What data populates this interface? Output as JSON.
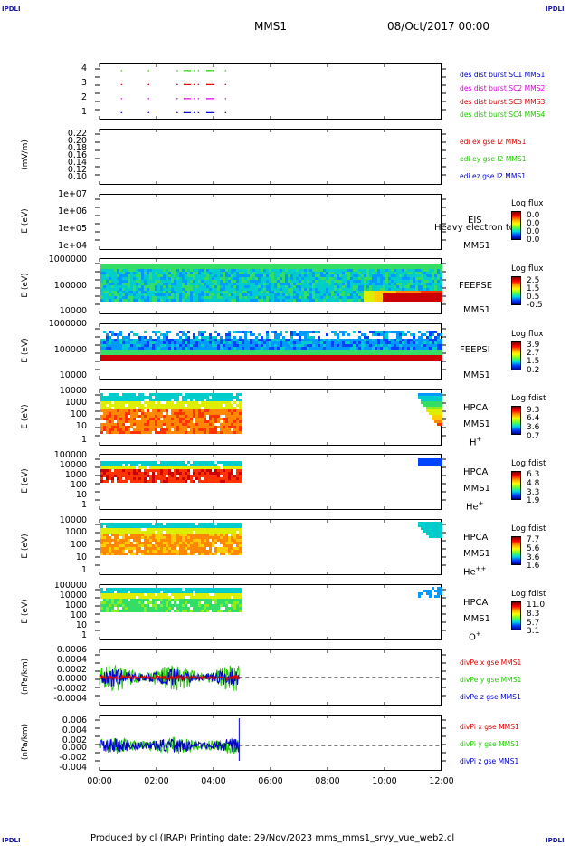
{
  "corners": {
    "tl": "IPDLI",
    "tr": "IPDLI",
    "bl": "IPDLI",
    "br": "IPDLI"
  },
  "header": {
    "spacecraft": "MMS1",
    "date": "08/Oct/2017 00:00"
  },
  "footer": {
    "text": "Produced by cl (IRAP)   Printing date: 29/Nov/2023   mms_mms1_srvy_vue_web2.cl"
  },
  "colors": {
    "red": "#dd0000",
    "green": "#22cc00",
    "blue": "#0000cc",
    "magenta": "#dd00dd"
  },
  "chart_data": [
    {
      "panel": "burst",
      "type": "scatter",
      "yticks": [
        "4",
        "3",
        "2",
        "1"
      ],
      "ylim": [
        0.5,
        4.5
      ],
      "legend": [
        "des dist burst SC1 MMS1",
        "des dist burst SC2 MMS2",
        "des dist burst SC3 MMS3",
        "des dist burst SC4 MMS4"
      ],
      "series": [
        {
          "name": "des dist burst SC1 MMS1",
          "y": 1,
          "x_hours": [
            0.75,
            1.7,
            2.7,
            2.95,
            3.3,
            3.45,
            3.75,
            4.4
          ]
        },
        {
          "name": "des dist burst SC2 MMS2",
          "y": 2,
          "x_hours": [
            0.75,
            1.7,
            2.7,
            2.95,
            3.3,
            3.45,
            3.75,
            4.4
          ]
        },
        {
          "name": "des dist burst SC3 MMS3",
          "y": 3,
          "x_hours": [
            0.75,
            1.7,
            2.7,
            2.95,
            3.3,
            3.45,
            3.75,
            4.4
          ]
        },
        {
          "name": "des dist burst SC4 MMS4",
          "y": 4,
          "x_hours": [
            0.75,
            1.7,
            2.7,
            2.95,
            3.3,
            3.45,
            3.75,
            4.4
          ]
        }
      ]
    },
    {
      "panel": "edi",
      "type": "line",
      "ylabel": "(mV/m)",
      "yticks": [
        "0.22",
        "0.20",
        "0.18",
        "0.16",
        "0.14",
        "0.12",
        "0.10"
      ],
      "legend": [
        "edi ex gse l2 MMS1",
        "edi ey gse l2 MMS1",
        "edi ez gse l2 MMS1"
      ]
    },
    {
      "panel": "eis",
      "type": "heatmap",
      "ylabel": "E (eV)",
      "yticks": [
        "1e+07",
        "1e+06",
        "1e+05",
        "1e+04"
      ],
      "instrument": [
        "EIS",
        "MMS1"
      ],
      "overlay_text": "Heavy electron to",
      "colorbar": {
        "title": "Log flux",
        "values": [
          "0.0",
          "0.0",
          "0.0",
          "0.0"
        ]
      }
    },
    {
      "panel": "feeps_e",
      "type": "heatmap",
      "ylabel": "E (eV)",
      "yticks": [
        "1000000",
        "100000",
        "10000"
      ],
      "instrument": [
        "FEEPSE",
        "MMS1"
      ],
      "colorbar": {
        "title": "Log flux",
        "values": [
          "2.5",
          "1.5",
          "0.5",
          "-0.5"
        ]
      }
    },
    {
      "panel": "feeps_i",
      "type": "heatmap",
      "ylabel": "E (eV)",
      "yticks": [
        "1000000",
        "100000",
        "10000"
      ],
      "instrument": [
        "FEEPSI",
        "MMS1"
      ],
      "colorbar": {
        "title": "Log flux",
        "values": [
          "3.9",
          "2.7",
          "1.5",
          "0.2"
        ]
      }
    },
    {
      "panel": "hpca_h",
      "type": "heatmap",
      "ylabel": "E (eV)",
      "yticks": [
        "10000",
        "1000",
        "100",
        "10",
        "1"
      ],
      "instrument": [
        "HPCA",
        "MMS1"
      ],
      "species": "H",
      "species_charge": "+",
      "colorbar": {
        "title": "Log fdist",
        "values": [
          "9.3",
          "6.4",
          "3.6",
          "0.7"
        ]
      }
    },
    {
      "panel": "hpca_he1",
      "type": "heatmap",
      "ylabel": "E (eV)",
      "yticks": [
        "100000",
        "10000",
        "1000",
        "100",
        "10",
        "1"
      ],
      "instrument": [
        "HPCA",
        "MMS1"
      ],
      "species": "He",
      "species_charge": "+",
      "colorbar": {
        "title": "Log fdist",
        "values": [
          "6.3",
          "4.8",
          "3.3",
          "1.9"
        ]
      }
    },
    {
      "panel": "hpca_he2",
      "type": "heatmap",
      "ylabel": "E (eV)",
      "yticks": [
        "10000",
        "1000",
        "100",
        "10",
        "1"
      ],
      "instrument": [
        "HPCA",
        "MMS1"
      ],
      "species": "He",
      "species_charge": "++",
      "colorbar": {
        "title": "Log fdist",
        "values": [
          "7.7",
          "5.6",
          "3.6",
          "1.6"
        ]
      }
    },
    {
      "panel": "hpca_o",
      "type": "heatmap",
      "ylabel": "E (eV)",
      "yticks": [
        "100000",
        "10000",
        "1000",
        "100",
        "10",
        "1"
      ],
      "instrument": [
        "HPCA",
        "MMS1"
      ],
      "species": "O",
      "species_charge": "+",
      "colorbar": {
        "title": "Log fdist",
        "values": [
          "11.0",
          "8.3",
          "5.7",
          "3.1"
        ]
      }
    },
    {
      "panel": "divpe",
      "type": "line",
      "ylabel": "(nPa/km)",
      "yticks": [
        "0.0006",
        "0.0004",
        "0.0002",
        "0.0000",
        "-0.0002",
        "-0.0004"
      ],
      "ylim": [
        -0.0005,
        0.0006
      ],
      "legend": [
        "divPe x gse MMS1",
        "divPe y gse MMS1",
        "divPe z gse MMS1"
      ]
    },
    {
      "panel": "divpi",
      "type": "line",
      "ylabel": "(nPa/km)",
      "yticks": [
        "0.006",
        "0.004",
        "0.002",
        "0.000",
        "-0.002",
        "-0.004"
      ],
      "ylim": [
        -0.005,
        0.007
      ],
      "legend": [
        "divPi x gse MMS1",
        "divPi y gse MMS1",
        "divPi z gse MMS1"
      ]
    }
  ],
  "xaxis": {
    "ticks": [
      "00:00",
      "02:00",
      "04:00",
      "06:00",
      "08:00",
      "10:00",
      "12:00"
    ],
    "range_hours": [
      0,
      12
    ]
  }
}
